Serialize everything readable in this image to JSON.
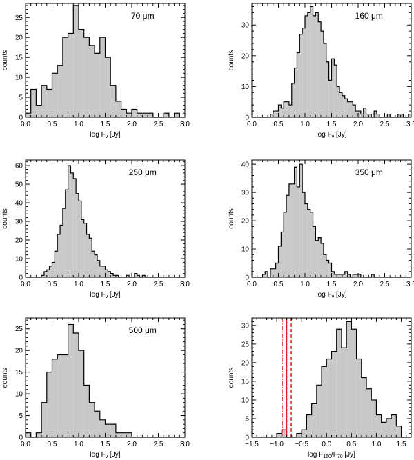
{
  "chart_data": [
    {
      "type": "histogram",
      "title": "70 μm",
      "xlabel": "log F",
      "xlabel_sub": "ν",
      "xlabel_unit": " [Jy]",
      "ylabel": "counts",
      "xlim": [
        0.0,
        3.0
      ],
      "ylim": [
        0,
        28.5
      ],
      "xticks": [
        "0.0",
        "0.5",
        "1.0",
        "1.5",
        "2.0",
        "2.5",
        "3.0"
      ],
      "xtick_values": [
        0.0,
        0.5,
        1.0,
        1.5,
        2.0,
        2.5,
        3.0
      ],
      "yticks": [
        0,
        5,
        10,
        15,
        20,
        25
      ],
      "bin_start": 0.0,
      "bin_width": 0.1,
      "counts": [
        1,
        7,
        3,
        8,
        7,
        11,
        13,
        20,
        21,
        28,
        22,
        20,
        18,
        16,
        20,
        15,
        8,
        4,
        2,
        1,
        2,
        1,
        1,
        1,
        0,
        0,
        1,
        0,
        1,
        0
      ]
    },
    {
      "type": "histogram",
      "title": "160 μm",
      "xlabel": "log F",
      "xlabel_sub": "ν",
      "xlabel_unit": " [Jy]",
      "ylabel": "counts",
      "xlim": [
        0.0,
        3.0
      ],
      "ylim": [
        0,
        37
      ],
      "xticks": [
        "0.0",
        "0.5",
        "1.0",
        "1.5",
        "2.0",
        "2.5",
        "3.0"
      ],
      "xtick_values": [
        0.0,
        0.5,
        1.0,
        1.5,
        2.0,
        2.5,
        3.0
      ],
      "yticks": [
        0,
        10,
        20,
        30
      ],
      "bin_start": 0.0,
      "bin_width": 0.05,
      "counts": [
        0,
        0,
        0,
        0,
        0,
        0,
        0,
        1,
        2,
        2,
        4,
        3,
        5,
        5,
        4,
        11,
        16,
        21,
        27,
        29,
        33,
        34,
        36,
        33,
        34,
        31,
        28,
        24,
        18,
        12,
        19,
        17,
        10,
        8,
        7,
        6,
        5,
        5,
        4,
        2,
        2,
        1,
        3,
        1,
        1,
        0,
        2,
        1,
        0,
        0,
        0,
        1,
        0,
        0,
        0,
        1,
        1,
        0,
        0,
        1
      ]
    },
    {
      "type": "histogram",
      "title": "250 μm",
      "xlabel": "log F",
      "xlabel_sub": "ν",
      "xlabel_unit": " [Jy]",
      "ylabel": "counts",
      "xlim": [
        0.0,
        3.0
      ],
      "ylim": [
        0,
        63
      ],
      "xticks": [
        "0.0",
        "0.5",
        "1.0",
        "1.5",
        "2.0",
        "2.5",
        "3.0"
      ],
      "xtick_values": [
        0.0,
        0.5,
        1.0,
        1.5,
        2.0,
        2.5,
        3.0
      ],
      "yticks": [
        0,
        10,
        20,
        30,
        40,
        50,
        60
      ],
      "bin_start": 0.0,
      "bin_width": 0.05,
      "counts": [
        0,
        0,
        0,
        0,
        0,
        0,
        1,
        3,
        4,
        6,
        8,
        14,
        23,
        28,
        37,
        47,
        60,
        56,
        53,
        45,
        41,
        31,
        29,
        23,
        21,
        14,
        12,
        9,
        6,
        6,
        4,
        3,
        2,
        1,
        1,
        0,
        0,
        0,
        1,
        0,
        0,
        2,
        1,
        0,
        1,
        0,
        0,
        0,
        0,
        0,
        0,
        0,
        0,
        0,
        0,
        0,
        0,
        0,
        0,
        0
      ]
    },
    {
      "type": "histogram",
      "title": "350 μm",
      "xlabel": "log F",
      "xlabel_sub": "ν",
      "xlabel_unit": " [Jy]",
      "ylabel": "counts",
      "xlim": [
        0.0,
        3.0
      ],
      "ylim": [
        0,
        41.5
      ],
      "xticks": [
        "0.0",
        "0.5",
        "1.0",
        "1.5",
        "2.0",
        "2.5",
        "3.0"
      ],
      "xtick_values": [
        0.0,
        0.5,
        1.0,
        1.5,
        2.0,
        2.5,
        3.0
      ],
      "yticks": [
        0,
        10,
        20,
        30,
        40
      ],
      "bin_start": 0.0,
      "bin_width": 0.05,
      "counts": [
        0,
        0,
        0,
        0,
        1,
        2,
        0,
        3,
        3,
        5,
        11,
        16,
        23,
        29,
        33,
        33,
        39,
        32,
        40,
        30,
        26,
        24,
        23,
        18,
        13,
        14,
        12,
        8,
        6,
        5,
        2,
        1,
        1,
        1,
        1,
        2,
        1,
        0,
        1,
        1,
        1,
        0,
        0,
        0,
        0,
        1,
        0,
        0,
        0,
        0,
        0,
        0,
        0,
        0,
        0,
        0,
        0,
        0,
        0,
        0
      ]
    },
    {
      "type": "histogram",
      "title": "500 μm",
      "xlabel": "log F",
      "xlabel_sub": "ν",
      "xlabel_unit": " [Jy]",
      "ylabel": "counts",
      "xlim": [
        0.0,
        3.0
      ],
      "ylim": [
        0,
        27.5
      ],
      "xticks": [
        "0.0",
        "0.5",
        "1.0",
        "1.5",
        "2.0",
        "2.5",
        "3.0"
      ],
      "xtick_values": [
        0.0,
        0.5,
        1.0,
        1.5,
        2.0,
        2.5,
        3.0
      ],
      "yticks": [
        0,
        5,
        10,
        15,
        20,
        25
      ],
      "bin_start": 0.0,
      "bin_width": 0.1,
      "counts": [
        1,
        0,
        1,
        8,
        15,
        18,
        19,
        19,
        26,
        24,
        20,
        12,
        8,
        6,
        4,
        3,
        3,
        1,
        1,
        1,
        0,
        0,
        0,
        0,
        0,
        0,
        0,
        0,
        0,
        0
      ]
    },
    {
      "type": "histogram",
      "title": "",
      "xlabel": "log F",
      "xlabel_sub": "160",
      "xlabel_mid": "/F",
      "xlabel_sub2": "70",
      "xlabel_unit": " [Jy]",
      "ylabel": "counts",
      "xlim": [
        -1.5,
        1.7
      ],
      "ylim": [
        0,
        32
      ],
      "xticks": [
        "−1.5",
        "−1.0",
        "−0.5",
        "0.0",
        "0.5",
        "1.0",
        "1.5"
      ],
      "xtick_values": [
        -1.5,
        -1.0,
        -0.5,
        0.0,
        0.5,
        1.0,
        1.5
      ],
      "yticks": [
        0,
        5,
        10,
        15,
        20,
        25,
        30
      ],
      "bin_start": -1.5,
      "bin_width": 0.1,
      "counts": [
        0,
        0,
        0,
        0,
        0,
        1,
        2,
        0,
        0,
        1,
        2,
        6,
        9,
        14,
        19,
        21,
        23,
        29,
        24,
        31,
        29,
        21,
        16,
        13,
        10,
        6,
        4,
        5,
        6,
        3,
        0,
        0
      ],
      "vlines": [
        {
          "x": -0.89,
          "style": "dashdot",
          "color": "#d42020"
        },
        {
          "x": -0.8,
          "style": "solid",
          "color": "#d42020"
        },
        {
          "x": -0.71,
          "style": "dashed",
          "color": "#d42020"
        }
      ]
    }
  ]
}
